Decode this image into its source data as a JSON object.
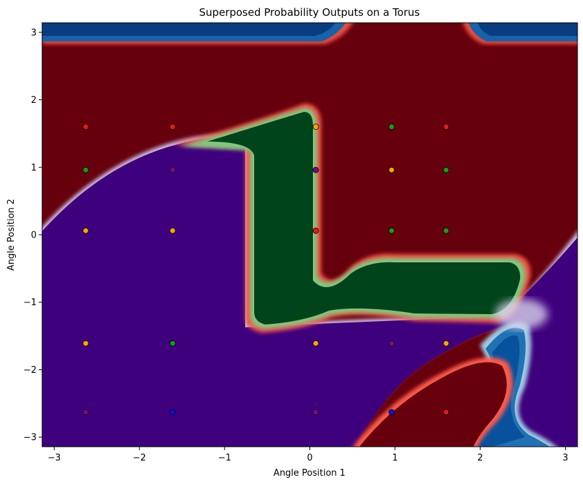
{
  "chart_data": {
    "type": "heatmap",
    "title": "Superposed Probability Outputs on a Torus",
    "xlabel": "Angle Position 1",
    "ylabel": "Angle Position 2",
    "xlim": [
      -3.14159,
      3.14159
    ],
    "ylim": [
      -3.14159,
      3.14159
    ],
    "xticks": [
      {
        "value": -3,
        "label": "−3"
      },
      {
        "value": -2,
        "label": "−2"
      },
      {
        "value": -1,
        "label": "−1"
      },
      {
        "value": 0,
        "label": "0"
      },
      {
        "value": 1,
        "label": "1"
      },
      {
        "value": 2,
        "label": "2"
      },
      {
        "value": 3,
        "label": "3"
      }
    ],
    "yticks": [
      {
        "value": -3,
        "label": "−3"
      },
      {
        "value": -2,
        "label": "−2"
      },
      {
        "value": -1,
        "label": "−1"
      },
      {
        "value": 0,
        "label": "0"
      },
      {
        "value": 1,
        "label": "1"
      },
      {
        "value": 2,
        "label": "2"
      },
      {
        "value": 3,
        "label": "3"
      }
    ],
    "grid": false,
    "region_colors": {
      "red": "#67000d",
      "green": "#00441b",
      "purple": "#3f007d",
      "blue": "#08306b"
    },
    "points": [
      {
        "x": -2.63,
        "y": 1.6,
        "color": "red"
      },
      {
        "x": -1.61,
        "y": 1.6,
        "color": "red"
      },
      {
        "x": 0.07,
        "y": 1.6,
        "color": "orange"
      },
      {
        "x": 0.96,
        "y": 1.6,
        "color": "green"
      },
      {
        "x": 1.6,
        "y": 1.6,
        "color": "red"
      },
      {
        "x": -2.63,
        "y": 0.96,
        "color": "green"
      },
      {
        "x": -1.61,
        "y": 0.96,
        "color": "purple"
      },
      {
        "x": 0.07,
        "y": 0.96,
        "color": "purple"
      },
      {
        "x": 0.96,
        "y": 0.96,
        "color": "orange"
      },
      {
        "x": 1.6,
        "y": 0.96,
        "color": "green"
      },
      {
        "x": -2.63,
        "y": 0.06,
        "color": "orange"
      },
      {
        "x": -1.61,
        "y": 0.06,
        "color": "orange"
      },
      {
        "x": 0.07,
        "y": 0.06,
        "color": "red"
      },
      {
        "x": 0.96,
        "y": 0.06,
        "color": "green"
      },
      {
        "x": 1.6,
        "y": 0.06,
        "color": "green"
      },
      {
        "x": -2.63,
        "y": -1.61,
        "color": "orange"
      },
      {
        "x": -1.61,
        "y": -1.61,
        "color": "green"
      },
      {
        "x": 0.07,
        "y": -1.61,
        "color": "orange"
      },
      {
        "x": 0.96,
        "y": -1.61,
        "color": "purple"
      },
      {
        "x": 1.6,
        "y": -1.61,
        "color": "orange"
      },
      {
        "x": -2.63,
        "y": -2.63,
        "color": "purple"
      },
      {
        "x": -1.61,
        "y": -2.63,
        "color": "blue"
      },
      {
        "x": 0.07,
        "y": -2.63,
        "color": "purple"
      },
      {
        "x": 0.96,
        "y": -2.63,
        "color": "blue"
      },
      {
        "x": 1.6,
        "y": -2.63,
        "color": "red"
      }
    ]
  }
}
